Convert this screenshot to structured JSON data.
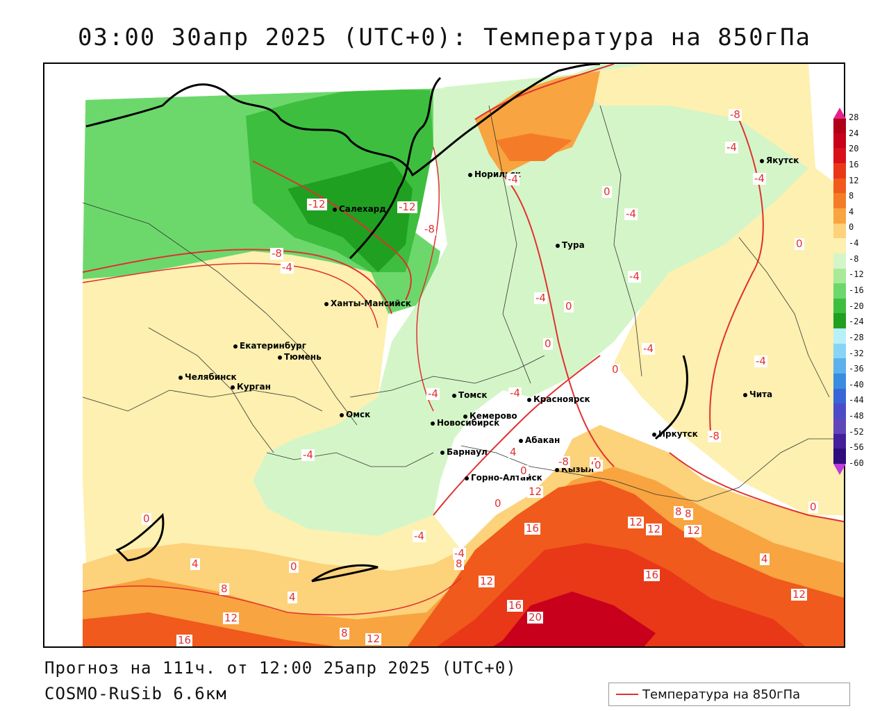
{
  "header": {
    "title": "03:00 30апр 2025 (UTC+0): Температура на 850гПа"
  },
  "footer": {
    "forecast_line": "Прогноз на 111ч. от 12:00 25апр 2025 (UTC+0)",
    "model_line": "COSMO-RuSib 6.6км"
  },
  "legend": {
    "line_label": "Температура на 850гПа",
    "line_color": "#e03030"
  },
  "colorbar": {
    "ticks": [
      "28",
      "24",
      "20",
      "16",
      "12",
      "8",
      "4",
      "0",
      "-4",
      "-8",
      "-12",
      "-16",
      "-20",
      "-24",
      "-28",
      "-32",
      "-36",
      "-40",
      "-44",
      "-48",
      "-52",
      "-56",
      "-60"
    ],
    "colors": [
      "#b00018",
      "#c8001c",
      "#d8101a",
      "#e83818",
      "#f05a1c",
      "#f47c28",
      "#f8a440",
      "#fcd27a",
      "#fdf0b0",
      "#d4f5c8",
      "#a8ea98",
      "#6cd86c",
      "#3ebe3e",
      "#20a020",
      "#b8f0f8",
      "#88d4f4",
      "#5cb0ee",
      "#3a8ce0",
      "#3866d8",
      "#4c4cc8",
      "#6046b8",
      "#44209c",
      "#300c7c"
    ],
    "top_arrow_color": "#e8208c",
    "bottom_arrow_color": "#c03cdc"
  },
  "cities": [
    {
      "name": "Норильск"
    },
    {
      "name": "Якутск"
    },
    {
      "name": "Салехард"
    },
    {
      "name": "Тура"
    },
    {
      "name": "Ханты-Мансийск"
    },
    {
      "name": "Екатеринбург"
    },
    {
      "name": "Тюмень"
    },
    {
      "name": "Челябинск"
    },
    {
      "name": "Курган"
    },
    {
      "name": "Томск"
    },
    {
      "name": "Красноярск"
    },
    {
      "name": "Омск"
    },
    {
      "name": "Новосибирск"
    },
    {
      "name": "Кемерово"
    },
    {
      "name": "Абакан"
    },
    {
      "name": "Барнаул"
    },
    {
      "name": "Иркутск"
    },
    {
      "name": "Чита"
    },
    {
      "name": "Горно-Алтайск"
    },
    {
      "name": "Кызыл"
    }
  ],
  "contour_labels": [
    "-8",
    "-4",
    "-4",
    "-12",
    "-12",
    "-8",
    "-8",
    "-4",
    "0",
    "-4",
    "-4",
    "0",
    "-4",
    "-4",
    "0",
    "0",
    "-4",
    "-4",
    "-4",
    "0",
    "-8",
    "-4",
    "-4",
    "-8",
    "4",
    "4",
    "0",
    "-4",
    "0",
    "12",
    "16",
    "12",
    "12",
    "8",
    "12",
    "0",
    "0",
    "4",
    "12",
    "8",
    "16",
    "16",
    "20",
    "12",
    "8",
    "12",
    "16",
    "8",
    "4",
    "12",
    "4",
    "0",
    "-4",
    "0",
    "8",
    "12"
  ]
}
